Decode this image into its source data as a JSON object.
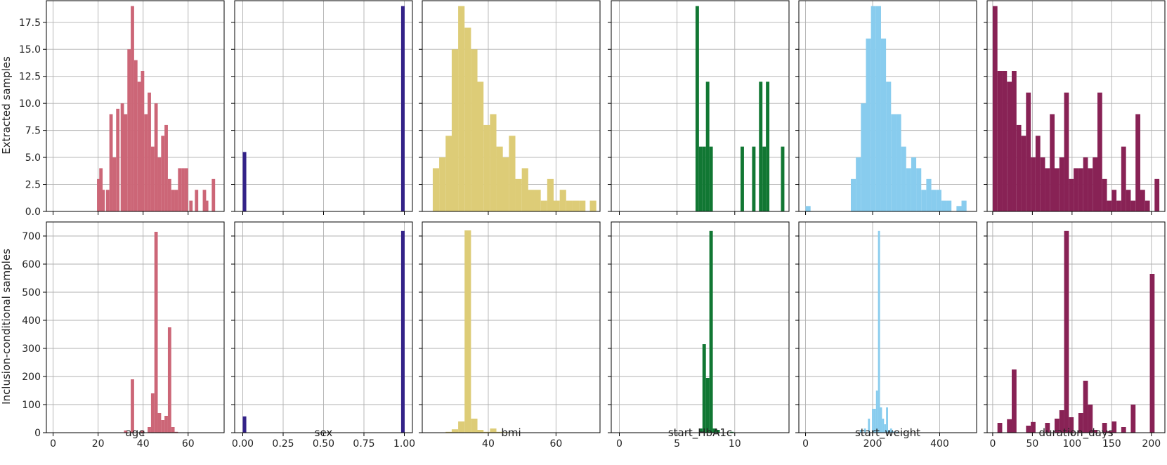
{
  "figure": {
    "row_labels": [
      "Extracted samples",
      "Inclusion-conditional samples"
    ],
    "column_xlabels": [
      "age",
      "sex",
      "bmi",
      "start_HbA1c",
      "start_weight",
      "duration_days"
    ]
  },
  "colors": {
    "age": "#cc6677",
    "sex": "#332288",
    "bmi": "#ddcc77",
    "start_HbA1c": "#117733",
    "start_weight": "#88ccee",
    "duration_days": "#882255",
    "grid": "#b0b0b0",
    "frame": "#000000"
  },
  "chart_data": [
    {
      "type": "bar",
      "row": 0,
      "col": 0,
      "xlabel": "age",
      "ylabel": "Extracted samples",
      "xlim": [
        -3,
        76
      ],
      "ylim": [
        0,
        19.5
      ],
      "xticks": [
        0,
        20,
        40,
        60
      ],
      "yticks": [
        0.0,
        2.5,
        5.0,
        7.5,
        10.0,
        12.5,
        15.0,
        17.5
      ],
      "show_xticklabels": false,
      "show_yticklabels": true,
      "bins": [
        [
          19.5,
          3
        ],
        [
          20.5,
          4
        ],
        [
          21.5,
          2
        ],
        [
          23.5,
          2
        ],
        [
          25,
          9
        ],
        [
          26.5,
          5
        ],
        [
          28,
          9.5
        ],
        [
          30,
          10
        ],
        [
          31.5,
          9
        ],
        [
          33,
          15
        ],
        [
          34.5,
          19
        ],
        [
          36,
          14
        ],
        [
          37.5,
          12
        ],
        [
          39,
          13
        ],
        [
          40.5,
          9
        ],
        [
          42,
          11
        ],
        [
          43.5,
          6
        ],
        [
          45,
          10
        ],
        [
          46.5,
          5
        ],
        [
          48,
          7
        ],
        [
          49.5,
          8
        ],
        [
          51,
          3
        ],
        [
          52.5,
          2
        ],
        [
          54,
          2
        ],
        [
          55.5,
          4
        ],
        [
          57,
          4
        ],
        [
          58.5,
          4
        ],
        [
          60.5,
          1
        ],
        [
          63,
          2
        ],
        [
          66.5,
          2
        ],
        [
          67.5,
          1
        ],
        [
          70.5,
          3
        ]
      ],
      "bin_width": 1.5
    },
    {
      "type": "bar",
      "row": 0,
      "col": 1,
      "xlabel": "sex",
      "xlim": [
        -0.05,
        1.05
      ],
      "ylim": [
        0,
        19.5
      ],
      "xticks": [
        0.0,
        0.25,
        0.5,
        0.75,
        1.0
      ],
      "yticks": [
        0.0,
        2.5,
        5.0,
        7.5,
        10.0,
        12.5,
        15.0,
        17.5
      ],
      "show_xticklabels": false,
      "show_yticklabels": false,
      "bins": [
        [
          0.0,
          5.5
        ],
        [
          0.98,
          19
        ]
      ],
      "bin_width": 0.022
    },
    {
      "type": "bar",
      "row": 0,
      "col": 2,
      "xlabel": "bmi",
      "xlim": [
        20.5,
        73
      ],
      "ylim": [
        0,
        19.5
      ],
      "xticks": [
        40,
        60
      ],
      "yticks": [
        0.0,
        2.5,
        5.0,
        7.5,
        10.0,
        12.5,
        15.0,
        17.5
      ],
      "show_xticklabels": false,
      "show_yticklabels": false,
      "bins": [
        [
          23.6,
          4
        ],
        [
          25.5,
          5
        ],
        [
          27.4,
          7
        ],
        [
          29.2,
          15
        ],
        [
          31.1,
          19
        ],
        [
          33.0,
          17
        ],
        [
          34.9,
          15
        ],
        [
          36.7,
          12
        ],
        [
          38.6,
          8
        ],
        [
          40.5,
          9
        ],
        [
          42.4,
          6
        ],
        [
          44.2,
          5
        ],
        [
          46.1,
          7
        ],
        [
          48.0,
          3
        ],
        [
          49.9,
          4
        ],
        [
          51.7,
          2
        ],
        [
          53.6,
          2
        ],
        [
          55.5,
          1
        ],
        [
          57.4,
          3
        ],
        [
          59.2,
          1
        ],
        [
          61.1,
          2
        ],
        [
          63.0,
          1
        ],
        [
          64.9,
          1
        ],
        [
          66.8,
          1
        ],
        [
          70.0,
          1
        ]
      ],
      "bin_width": 1.9
    },
    {
      "type": "bar",
      "row": 0,
      "col": 3,
      "xlabel": "start_HbA1c",
      "xlim": [
        -0.7,
        14.7
      ],
      "ylim": [
        0,
        19.5
      ],
      "xticks": [
        0,
        5,
        10
      ],
      "yticks": [
        0.0,
        2.5,
        5.0,
        7.5,
        10.0,
        12.5,
        15.0,
        17.5
      ],
      "show_xticklabels": false,
      "show_yticklabels": false,
      "bins": [
        [
          6.6,
          19
        ],
        [
          6.9,
          6
        ],
        [
          7.2,
          6
        ],
        [
          7.5,
          12
        ],
        [
          7.8,
          6
        ],
        [
          10.5,
          6
        ],
        [
          11.5,
          6
        ],
        [
          12.1,
          12
        ],
        [
          12.4,
          6
        ],
        [
          12.7,
          12
        ],
        [
          14.0,
          6
        ]
      ],
      "bin_width": 0.3
    },
    {
      "type": "bar",
      "row": 0,
      "col": 4,
      "xlabel": "start_weight",
      "xlim": [
        -20,
        510
      ],
      "ylim": [
        0,
        19.5
      ],
      "xticks": [
        0,
        200,
        400
      ],
      "yticks": [
        0.0,
        2.5,
        5.0,
        7.5,
        10.0,
        12.5,
        15.0,
        17.5
      ],
      "show_xticklabels": false,
      "show_yticklabels": false,
      "bins": [
        [
          0,
          0.5
        ],
        [
          15,
          0
        ],
        [
          135,
          3
        ],
        [
          150,
          5
        ],
        [
          165,
          10
        ],
        [
          180,
          16
        ],
        [
          195,
          19
        ],
        [
          210,
          19
        ],
        [
          225,
          16
        ],
        [
          240,
          12
        ],
        [
          255,
          9
        ],
        [
          270,
          9
        ],
        [
          285,
          6
        ],
        [
          300,
          4
        ],
        [
          315,
          5
        ],
        [
          330,
          4
        ],
        [
          345,
          2
        ],
        [
          360,
          3
        ],
        [
          375,
          2
        ],
        [
          390,
          2
        ],
        [
          405,
          1
        ],
        [
          420,
          1
        ],
        [
          450,
          0.5
        ],
        [
          465,
          1
        ]
      ],
      "bin_width": 15
    },
    {
      "type": "bar",
      "row": 0,
      "col": 5,
      "xlabel": "duration_days",
      "xlim": [
        -7,
        217
      ],
      "ylim": [
        0,
        19.5
      ],
      "xticks": [
        0,
        50,
        100,
        150,
        200
      ],
      "yticks": [
        0.0,
        2.5,
        5.0,
        7.5,
        10.0,
        12.5,
        15.0,
        17.5
      ],
      "show_xticklabels": false,
      "show_yticklabels": false,
      "bins": [
        [
          0,
          19
        ],
        [
          6,
          13
        ],
        [
          12,
          13
        ],
        [
          18,
          12
        ],
        [
          24,
          13
        ],
        [
          30,
          8
        ],
        [
          36,
          7
        ],
        [
          42,
          11
        ],
        [
          48,
          5
        ],
        [
          54,
          7
        ],
        [
          60,
          5
        ],
        [
          66,
          4
        ],
        [
          72,
          9
        ],
        [
          78,
          4
        ],
        [
          84,
          5
        ],
        [
          90,
          11
        ],
        [
          96,
          3
        ],
        [
          102,
          4
        ],
        [
          108,
          4
        ],
        [
          114,
          5
        ],
        [
          120,
          4
        ],
        [
          126,
          5
        ],
        [
          132,
          11
        ],
        [
          138,
          3
        ],
        [
          144,
          1
        ],
        [
          150,
          2
        ],
        [
          156,
          1
        ],
        [
          162,
          6
        ],
        [
          168,
          2
        ],
        [
          174,
          1
        ],
        [
          180,
          9
        ],
        [
          186,
          2
        ],
        [
          192,
          1
        ],
        [
          204,
          3
        ]
      ],
      "bin_width": 6
    },
    {
      "type": "bar",
      "row": 1,
      "col": 0,
      "xlabel": "age",
      "ylabel": "Inclusion-conditional samples",
      "xlim": [
        -3,
        76
      ],
      "ylim": [
        0,
        750
      ],
      "xticks": [
        0,
        20,
        40,
        60
      ],
      "yticks": [
        0,
        100,
        200,
        300,
        400,
        500,
        600,
        700
      ],
      "show_xticklabels": true,
      "show_yticklabels": true,
      "bins": [
        [
          31.5,
          8
        ],
        [
          34.5,
          190
        ],
        [
          39,
          8
        ],
        [
          42,
          20
        ],
        [
          43.5,
          140
        ],
        [
          45,
          715
        ],
        [
          46.5,
          70
        ],
        [
          48,
          45
        ],
        [
          49.5,
          60
        ],
        [
          51,
          375
        ],
        [
          52.5,
          20
        ],
        [
          54,
          3
        ]
      ],
      "bin_width": 1.5
    },
    {
      "type": "bar",
      "row": 1,
      "col": 1,
      "xlabel": "sex",
      "xlim": [
        -0.05,
        1.05
      ],
      "ylim": [
        0,
        750
      ],
      "xticks": [
        0.0,
        0.25,
        0.5,
        0.75,
        1.0
      ],
      "yticks": [
        0,
        100,
        200,
        300,
        400,
        500,
        600,
        700
      ],
      "show_xticklabels": true,
      "show_yticklabels": false,
      "bins": [
        [
          0.0,
          58
        ],
        [
          0.98,
          718
        ]
      ],
      "bin_width": 0.022
    },
    {
      "type": "bar",
      "row": 1,
      "col": 2,
      "xlabel": "bmi",
      "xlim": [
        20.5,
        73
      ],
      "ylim": [
        0,
        750
      ],
      "xticks": [
        40,
        60
      ],
      "yticks": [
        0,
        100,
        200,
        300,
        400,
        500,
        600,
        700
      ],
      "show_xticklabels": true,
      "show_yticklabels": false,
      "bins": [
        [
          27.4,
          3
        ],
        [
          29.2,
          12
        ],
        [
          31.1,
          40
        ],
        [
          33.0,
          720
        ],
        [
          34.9,
          50
        ],
        [
          36.7,
          10
        ],
        [
          38.6,
          3
        ],
        [
          40.5,
          15
        ],
        [
          42.4,
          3
        ],
        [
          44.2,
          2
        ]
      ],
      "bin_width": 1.9
    },
    {
      "type": "bar",
      "row": 1,
      "col": 3,
      "xlabel": "start_HbA1c",
      "xlim": [
        -0.7,
        14.7
      ],
      "ylim": [
        0,
        750
      ],
      "xticks": [
        0,
        5,
        10
      ],
      "yticks": [
        0,
        100,
        200,
        300,
        400,
        500,
        600,
        700
      ],
      "show_xticklabels": true,
      "show_yticklabels": false,
      "bins": [
        [
          6.9,
          15
        ],
        [
          7.2,
          315
        ],
        [
          7.5,
          195
        ],
        [
          7.8,
          718
        ],
        [
          8.1,
          15
        ],
        [
          8.4,
          10
        ],
        [
          9.6,
          3
        ]
      ],
      "bin_width": 0.3
    },
    {
      "type": "bar",
      "row": 1,
      "col": 4,
      "xlabel": "start_weight",
      "xlim": [
        -20,
        510
      ],
      "ylim": [
        0,
        750
      ],
      "xticks": [
        0,
        200,
        400
      ],
      "yticks": [
        0,
        100,
        200,
        300,
        400,
        500,
        600,
        700
      ],
      "show_xticklabels": true,
      "show_yticklabels": false,
      "bins": [
        [
          162,
          10
        ],
        [
          174,
          15
        ],
        [
          186,
          50
        ],
        [
          198,
          85
        ],
        [
          204,
          85
        ],
        [
          210,
          150
        ],
        [
          216,
          718
        ],
        [
          222,
          90
        ],
        [
          228,
          50
        ],
        [
          234,
          30
        ],
        [
          240,
          90
        ],
        [
          246,
          10
        ],
        [
          252,
          15
        ],
        [
          258,
          5
        ],
        [
          270,
          3
        ]
      ],
      "bin_width": 6
    },
    {
      "type": "bar",
      "row": 1,
      "col": 5,
      "xlabel": "duration_days",
      "xlim": [
        -7,
        217
      ],
      "ylim": [
        0,
        750
      ],
      "xticks": [
        0,
        50,
        100,
        150,
        200
      ],
      "yticks": [
        0,
        100,
        200,
        300,
        400,
        500,
        600,
        700
      ],
      "show_xticklabels": true,
      "show_yticklabels": false,
      "bins": [
        [
          6,
          35
        ],
        [
          18,
          48
        ],
        [
          24,
          225
        ],
        [
          42,
          25
        ],
        [
          48,
          38
        ],
        [
          66,
          35
        ],
        [
          78,
          50
        ],
        [
          84,
          80
        ],
        [
          90,
          718
        ],
        [
          96,
          55
        ],
        [
          108,
          70
        ],
        [
          114,
          185
        ],
        [
          120,
          100
        ],
        [
          126,
          10
        ],
        [
          138,
          35
        ],
        [
          144,
          5
        ],
        [
          150,
          40
        ],
        [
          162,
          20
        ],
        [
          174,
          100
        ],
        [
          198,
          565
        ]
      ],
      "bin_width": 6
    }
  ]
}
